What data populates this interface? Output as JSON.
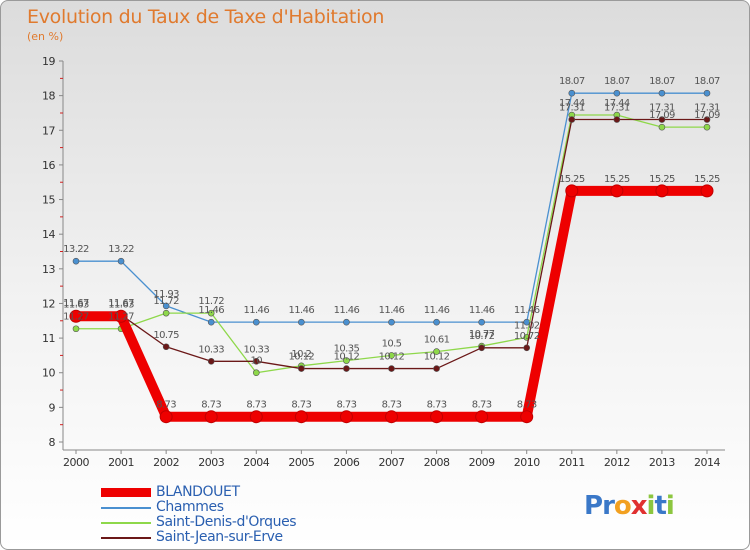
{
  "chart_data": {
    "type": "line",
    "title": "Evolution du Taux de Taxe d'Habitation",
    "subtitle": "(en %)",
    "categories": [
      "2000",
      "2001",
      "2002",
      "2003",
      "2004",
      "2005",
      "2006",
      "2007",
      "2008",
      "2009",
      "2010",
      "2011",
      "2012",
      "2013",
      "2014"
    ],
    "ylim": [
      8,
      19
    ],
    "yticks": [
      8,
      9,
      10,
      11,
      12,
      13,
      14,
      15,
      16,
      17,
      18,
      19
    ],
    "grid": false,
    "legend_position": "bottom-left",
    "series": [
      {
        "name": "BLANDOUET",
        "color": "#ee0000",
        "values": [
          11.63,
          11.63,
          8.73,
          8.73,
          8.73,
          8.73,
          8.73,
          8.73,
          8.73,
          8.73,
          8.73,
          15.25,
          15.25,
          15.25,
          15.25
        ]
      },
      {
        "name": "Chammes",
        "color": "#4a90d0",
        "values": [
          13.22,
          13.22,
          11.93,
          11.46,
          11.46,
          11.46,
          11.46,
          11.46,
          11.46,
          11.46,
          11.46,
          18.07,
          18.07,
          18.07,
          18.07
        ]
      },
      {
        "name": "Saint-Denis-d'Orques",
        "color": "#8ed84a",
        "values": [
          11.27,
          11.27,
          11.72,
          11.72,
          10.0,
          10.2,
          10.35,
          10.5,
          10.61,
          10.77,
          11.02,
          17.44,
          17.44,
          17.09,
          17.09
        ]
      },
      {
        "name": "Saint-Jean-sur-Erve",
        "color": "#6b1818",
        "values": [
          11.67,
          11.67,
          10.75,
          10.33,
          10.33,
          10.12,
          10.12,
          10.12,
          10.12,
          10.72,
          10.72,
          17.31,
          17.31,
          17.31,
          17.31
        ]
      }
    ],
    "data_labels": [
      [
        "11.63",
        "11.63",
        "8.73",
        "8.73",
        "8.73",
        "8.73",
        "8.73",
        "8.73",
        "8.73",
        "8.73",
        "8.73",
        "15.25",
        "15.25",
        "15.25",
        "15.25"
      ],
      [
        "13.22",
        "13.22",
        "11.93",
        "11.46",
        "11.46",
        "11.46",
        "11.46",
        "11.46",
        "11.46",
        "11.46",
        "11.46",
        "18.07",
        "18.07",
        "18.07",
        "18.07"
      ],
      [
        "11.27",
        "11.27",
        "11.72",
        "11.72",
        "10",
        "10.2",
        "10.35",
        "10.5",
        "10.61",
        "10.77",
        "11.02",
        "17.44",
        "17.44",
        "17.09",
        "17.09"
      ],
      [
        "11.67",
        "11.67",
        "10.75",
        "10.33",
        "10.33",
        "10.12",
        "10.12",
        "10.12",
        "10.12",
        "10.72",
        "10.72",
        "17.31",
        "17.31",
        "17.31",
        "17.31"
      ]
    ]
  },
  "legend": {
    "items": [
      {
        "label": "BLANDOUET",
        "color": "#ee0000",
        "thick": true
      },
      {
        "label": "Chammes",
        "color": "#4a90d0",
        "thick": false
      },
      {
        "label": "Saint-Denis-d'Orques",
        "color": "#8ed84a",
        "thick": false
      },
      {
        "label": "Saint-Jean-sur-Erve",
        "color": "#6b1818",
        "thick": false
      }
    ]
  },
  "logo": {
    "letters": [
      "P",
      "r",
      "o",
      "x",
      "i",
      "t",
      "i"
    ],
    "colors": [
      "#3a78c8",
      "#3a78c8",
      "#f2a020",
      "#e03030",
      "#8cc63f",
      "#3a78c8",
      "#8cc63f"
    ]
  }
}
